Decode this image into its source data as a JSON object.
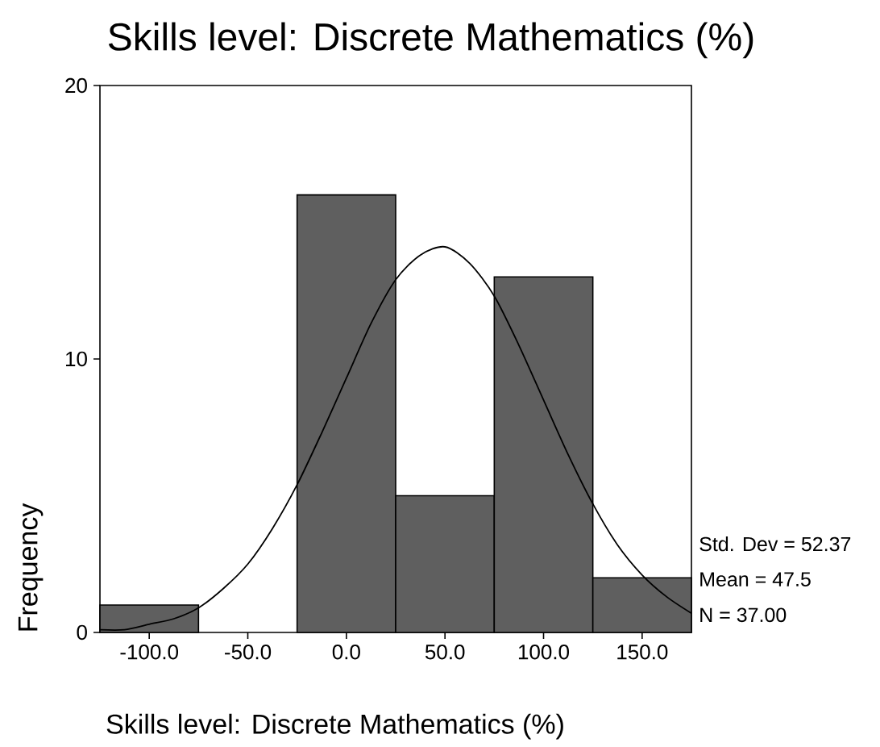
{
  "chart_data": {
    "type": "histogram",
    "title": "Skills level: Discrete Mathematics (%)",
    "xlabel": "Skills level: Discrete Mathematics (%)",
    "ylabel": "Frequency",
    "bins": [
      -125,
      -75,
      -25,
      25,
      75,
      125,
      175
    ],
    "series": [
      {
        "color": "#5f5f5f",
        "values": [
          1,
          0,
          16,
          5,
          13,
          2
        ]
      },
      {
        "type": "line",
        "color": "#000000",
        "x": [
          -125,
          -112.5,
          -100,
          -87.5,
          -75,
          -62.5,
          -50,
          -37.5,
          -25,
          -12.5,
          0,
          12.5,
          25,
          37.5,
          50,
          62.5,
          75,
          87.5,
          100,
          112.5,
          125,
          137.5,
          150,
          162.5,
          175
        ],
        "values": [
          0.1,
          0.1,
          0.3,
          0.5,
          0.9,
          1.6,
          2.5,
          3.8,
          5.4,
          7.3,
          9.3,
          11.3,
          12.9,
          13.8,
          14.1,
          13.5,
          12.3,
          10.5,
          8.5,
          6.5,
          4.7,
          3.2,
          2.1,
          1.3,
          0.7
        ]
      }
    ],
    "xlim": [
      -125,
      175
    ],
    "ylim": [
      0,
      20
    ],
    "xticks": [
      {
        "value": -100,
        "label": "-100.0"
      },
      {
        "value": -50,
        "label": "-50.0"
      },
      {
        "value": 0,
        "label": "0.0"
      },
      {
        "value": 50,
        "label": "50.0"
      },
      {
        "value": 100,
        "label": "100.0"
      },
      {
        "value": 150,
        "label": "150.0"
      }
    ],
    "yticks": [
      0,
      10,
      20
    ],
    "annotations": [
      "Std. Dev = 52.37",
      "Mean = 47.5",
      "N = 37.00"
    ]
  }
}
